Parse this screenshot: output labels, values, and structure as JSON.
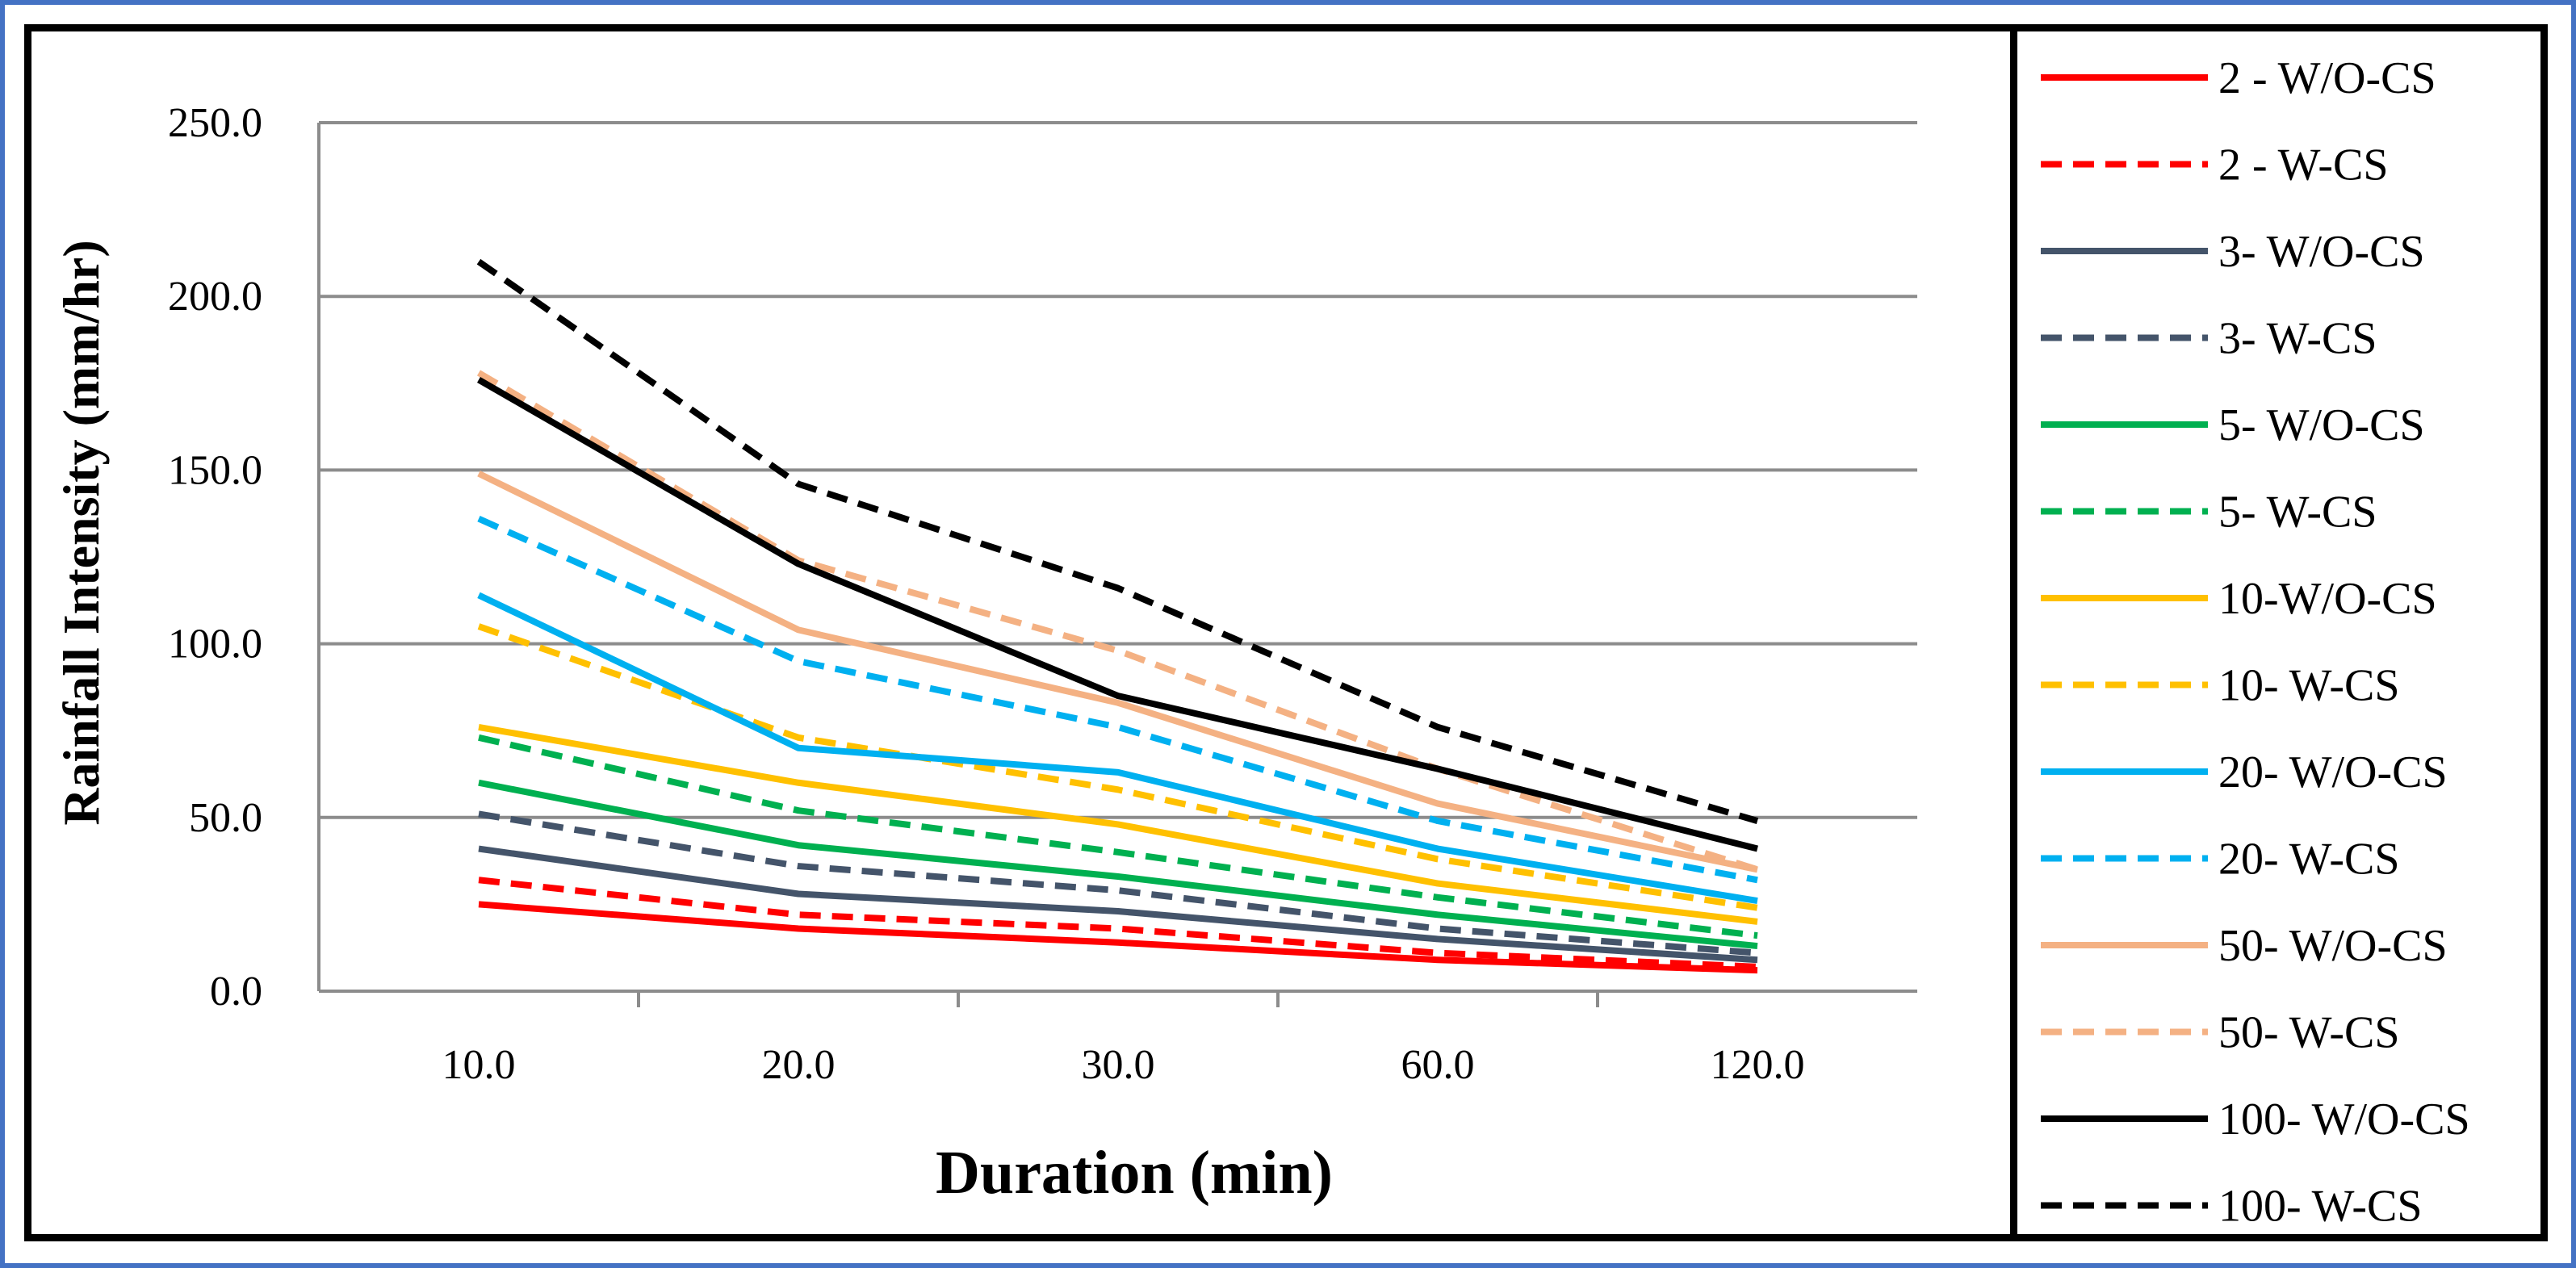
{
  "chart_data": {
    "type": "line",
    "title": "",
    "xlabel": "Duration (min)",
    "ylabel": "Rainfall Intensity (mm/hr)",
    "categories": [
      "10.0",
      "20.0",
      "30.0",
      "60.0",
      "120.0"
    ],
    "ylim": [
      0,
      250
    ],
    "yticks": [
      "0.0",
      "50.0",
      "100.0",
      "150.0",
      "200.0",
      "250.0"
    ],
    "grid": true,
    "legend_position": "right",
    "series": [
      {
        "name": "2 - W/O-CS",
        "color": "#ff0000",
        "dash": false,
        "values": [
          25,
          18,
          14,
          9,
          6
        ]
      },
      {
        "name": "2 - W-CS",
        "color": "#ff0000",
        "dash": true,
        "values": [
          32,
          22,
          18,
          11,
          7
        ]
      },
      {
        "name": "3- W/O-CS",
        "color": "#44546a",
        "dash": false,
        "values": [
          41,
          28,
          23,
          15,
          9
        ]
      },
      {
        "name": "3- W-CS",
        "color": "#44546a",
        "dash": true,
        "values": [
          51,
          36,
          29,
          18,
          11
        ]
      },
      {
        "name": "5- W/O-CS",
        "color": "#00b050",
        "dash": false,
        "values": [
          60,
          42,
          33,
          22,
          13
        ]
      },
      {
        "name": "5- W-CS",
        "color": "#00b050",
        "dash": true,
        "values": [
          73,
          52,
          40,
          27,
          16
        ]
      },
      {
        "name": "10-W/O-CS",
        "color": "#ffc000",
        "dash": false,
        "values": [
          76,
          60,
          48,
          31,
          20
        ]
      },
      {
        "name": "10- W-CS",
        "color": "#ffc000",
        "dash": true,
        "values": [
          105,
          73,
          58,
          38,
          24
        ]
      },
      {
        "name": "20- W/O-CS",
        "color": "#00b0f0",
        "dash": false,
        "values": [
          114,
          70,
          63,
          41,
          26
        ]
      },
      {
        "name": "20- W-CS",
        "color": "#00b0f0",
        "dash": true,
        "values": [
          136,
          95,
          76,
          49,
          32
        ]
      },
      {
        "name": "50- W/O-CS",
        "color": "#f4b183",
        "dash": false,
        "values": [
          149,
          104,
          83,
          54,
          35
        ]
      },
      {
        "name": "50- W-CS",
        "color": "#f4b183",
        "dash": true,
        "values": [
          178,
          124,
          98,
          64,
          35
        ]
      },
      {
        "name": "100- W/O-CS",
        "color": "#000000",
        "dash": false,
        "values": [
          176,
          123,
          85,
          64,
          41
        ]
      },
      {
        "name": "100- W-CS",
        "color": "#000000",
        "dash": true,
        "values": [
          210,
          146,
          116,
          76,
          49
        ]
      }
    ]
  }
}
